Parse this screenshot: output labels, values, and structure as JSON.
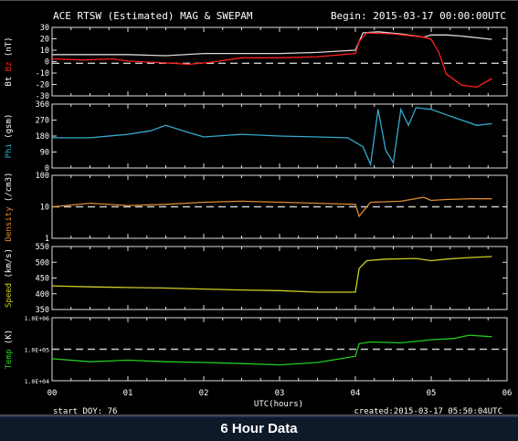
{
  "header": {
    "title": "ACE RTSW (Estimated) MAG & SWEPAM",
    "begin": "Begin: 2015-03-17 00:00:00UTC"
  },
  "footer": {
    "start_label": "start DOY:  76",
    "created_label": "created:2015-03-17 05:50:04UTC",
    "banner": "6 Hour Data"
  },
  "chart_data": [
    {
      "type": "line",
      "panel": "mag",
      "ylabel_parts": [
        "Bt",
        " Bz",
        " (nT)"
      ],
      "ylabel_colors": [
        "#ffffff",
        "#ff2020",
        "#ffffff"
      ],
      "yticks": [
        "30",
        "20",
        "10",
        "0",
        "-10",
        "-20",
        "-30"
      ],
      "ylim": [
        -30,
        33
      ],
      "refline": 0,
      "series": [
        {
          "color": "#d8d8d8",
          "x": [
            0.0,
            0.5,
            1.0,
            1.5,
            2.0,
            2.5,
            3.0,
            3.5,
            4.0,
            4.1,
            4.3,
            4.6,
            4.9,
            5.0,
            5.2,
            5.4,
            5.8
          ],
          "y": [
            8,
            8,
            8,
            7,
            9,
            9,
            9,
            10,
            12,
            28,
            29,
            27,
            24,
            26,
            26,
            25,
            22
          ]
        },
        {
          "color": "#ff2020",
          "x": [
            0.0,
            0.4,
            0.8,
            1.0,
            1.3,
            1.6,
            1.8,
            2.1,
            2.5,
            3.0,
            3.5,
            4.0,
            4.05,
            4.15,
            4.5,
            4.9,
            5.0,
            5.1,
            5.2,
            5.4,
            5.6,
            5.8
          ],
          "y": [
            4,
            3,
            4,
            2,
            1,
            0,
            -1,
            1,
            5,
            5,
            6,
            9,
            20,
            28,
            27,
            24,
            22,
            10,
            -10,
            -20,
            -22,
            -14
          ]
        }
      ]
    },
    {
      "type": "line",
      "panel": "phi",
      "ylabel_parts": [
        "Phi",
        " (gsm)"
      ],
      "ylabel_colors": [
        "#33aacc",
        "#ffffff"
      ],
      "yticks": [
        "360",
        "270",
        "180",
        "90",
        "0"
      ],
      "ylim": [
        0,
        360
      ],
      "refline": null,
      "series": [
        {
          "color": "#33aacc",
          "x": [
            0.0,
            0.5,
            1.0,
            1.3,
            1.5,
            1.8,
            2.0,
            2.5,
            3.0,
            3.5,
            3.9,
            4.1,
            4.2,
            4.3,
            4.4,
            4.5,
            4.6,
            4.7,
            4.8,
            5.0,
            5.2,
            5.4,
            5.6,
            5.8
          ],
          "y": [
            170,
            170,
            190,
            210,
            240,
            200,
            175,
            190,
            180,
            175,
            170,
            120,
            20,
            330,
            100,
            30,
            330,
            240,
            340,
            330,
            300,
            270,
            240,
            250
          ]
        }
      ]
    },
    {
      "type": "line",
      "panel": "density",
      "log": true,
      "ylabel_parts": [
        "Density",
        " (/cm3)"
      ],
      "ylabel_colors": [
        "#dd8833",
        "#ffffff"
      ],
      "yticks": [
        "100",
        "10",
        "1"
      ],
      "ylim": [
        1,
        100
      ],
      "refline": 10,
      "series": [
        {
          "color": "#dd8833",
          "x": [
            0.0,
            0.5,
            1.0,
            1.5,
            2.0,
            2.5,
            3.0,
            3.5,
            4.0,
            4.05,
            4.2,
            4.6,
            4.9,
            5.0,
            5.2,
            5.5,
            5.8
          ],
          "y": [
            10,
            13,
            11,
            12,
            14,
            15,
            14,
            13,
            12,
            5,
            14,
            15,
            20,
            16,
            17,
            18,
            18
          ]
        }
      ]
    },
    {
      "type": "line",
      "panel": "speed",
      "ylabel_parts": [
        "Speed",
        " (km/s)"
      ],
      "ylabel_colors": [
        "#cccc22",
        "#ffffff"
      ],
      "yticks": [
        "550",
        "500",
        "450",
        "400",
        "350"
      ],
      "ylim": [
        350,
        550
      ],
      "refline": null,
      "series": [
        {
          "color": "#cccc22",
          "x": [
            0.0,
            0.5,
            1.0,
            1.5,
            2.0,
            2.5,
            3.0,
            3.5,
            4.0,
            4.05,
            4.15,
            4.4,
            4.8,
            5.0,
            5.2,
            5.5,
            5.8
          ],
          "y": [
            425,
            422,
            420,
            418,
            415,
            412,
            410,
            405,
            405,
            480,
            505,
            510,
            512,
            505,
            510,
            515,
            518
          ]
        }
      ]
    },
    {
      "type": "line",
      "panel": "temp",
      "log": true,
      "ylabel_parts": [
        "Temp",
        " (K)"
      ],
      "ylabel_colors": [
        "#22cc22",
        "#ffffff"
      ],
      "yticks": [
        "1.0E+06",
        "1.0E+05",
        "1.0E+04"
      ],
      "ylim": [
        10000,
        1000000
      ],
      "refline": 100000,
      "series": [
        {
          "color": "#22cc22",
          "x": [
            0.0,
            0.5,
            1.0,
            1.5,
            2.0,
            2.5,
            3.0,
            3.5,
            4.0,
            4.05,
            4.2,
            4.6,
            5.0,
            5.3,
            5.5,
            5.8
          ],
          "y": [
            50000,
            40000,
            45000,
            40000,
            38000,
            35000,
            32000,
            38000,
            60000,
            150000,
            170000,
            160000,
            200000,
            220000,
            280000,
            250000
          ]
        }
      ]
    }
  ],
  "xaxis": {
    "ticks": [
      "00",
      "01",
      "02",
      "03",
      "04",
      "05",
      "06"
    ],
    "xlim": [
      0,
      6
    ],
    "label": "UTC(hours)"
  }
}
